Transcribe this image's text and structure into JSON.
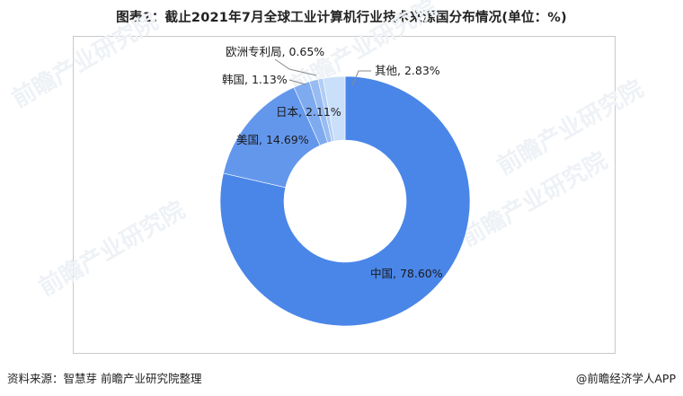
{
  "chart_data": {
    "type": "pie",
    "subtype": "donut",
    "title": "图表1：截止2021年7月全球工业计算机行业技术来源国分布情况(单位：%)",
    "categories": [
      "中国",
      "美国",
      "日本",
      "韩国",
      "欧洲专利局",
      "其他"
    ],
    "values": [
      78.6,
      14.69,
      2.11,
      1.13,
      0.65,
      2.83
    ],
    "labels": [
      "中国, 78.60%",
      "美国, 14.69%",
      "日本, 2.11%",
      "韩国, 1.13%",
      "欧洲专利局, 0.65%",
      "其他, 2.83%"
    ],
    "colors": [
      "#4a86e8",
      "#6397ec",
      "#7eaaf0",
      "#98bcf2",
      "#b0cdf6",
      "#cadff9"
    ]
  },
  "footer": {
    "source": "资料来源：智慧芽 前瞻产业研究院整理",
    "brand": "@前瞻经济学人APP"
  },
  "watermark": {
    "text": "前瞻产业研究院"
  }
}
